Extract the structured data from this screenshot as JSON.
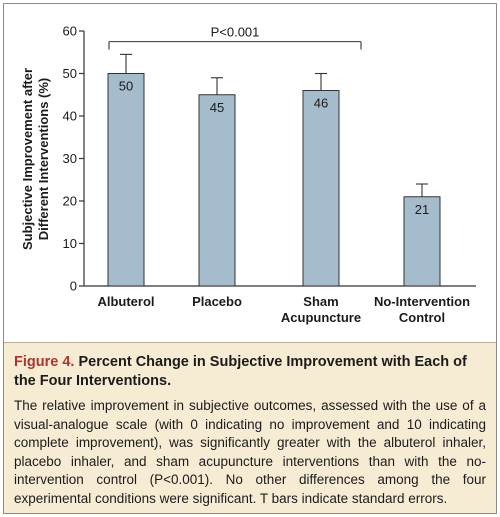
{
  "chart_data": {
    "type": "bar",
    "categories": [
      "Albuterol",
      "Placebo",
      "Sham\nAcupuncture",
      "No-Intervention\nControl"
    ],
    "values": [
      50,
      45,
      46,
      21
    ],
    "value_labels": [
      "50",
      "45",
      "46",
      "21"
    ],
    "errors_upper": [
      54.5,
      49,
      50,
      24
    ],
    "errors_lower": [
      50,
      45,
      46,
      21
    ],
    "ylabel": "Subjective Improvement after\nDifferent Interventions (%)",
    "ylim": [
      0,
      60
    ],
    "yticks": [
      0,
      10,
      20,
      30,
      40,
      50,
      60
    ],
    "grid": false,
    "significance": {
      "from": 0,
      "to": 2,
      "label": "P<0.001",
      "level": 57.5
    },
    "bar_color": "#a5bccc",
    "bar_stroke": "#333333"
  },
  "caption": {
    "figure_label": "Figure 4.",
    "title": "Percent Change in Subjective Improvement with Each of the Four Interventions.",
    "body": "The relative improvement in subjective outcomes, assessed with the use of a visual-analogue scale (with 0 indicating no improvement and 10 indicating complete improvement), was significantly greater with the albuterol inhaler, placebo inhaler, and sham acupuncture interventions than with the no-intervention control (P<0.001). No other differences among the four experimental conditions were significant. T bars indicate standard errors."
  },
  "colors": {
    "caption_background": "#f6ecd4",
    "figure_label": "#b1342c"
  }
}
